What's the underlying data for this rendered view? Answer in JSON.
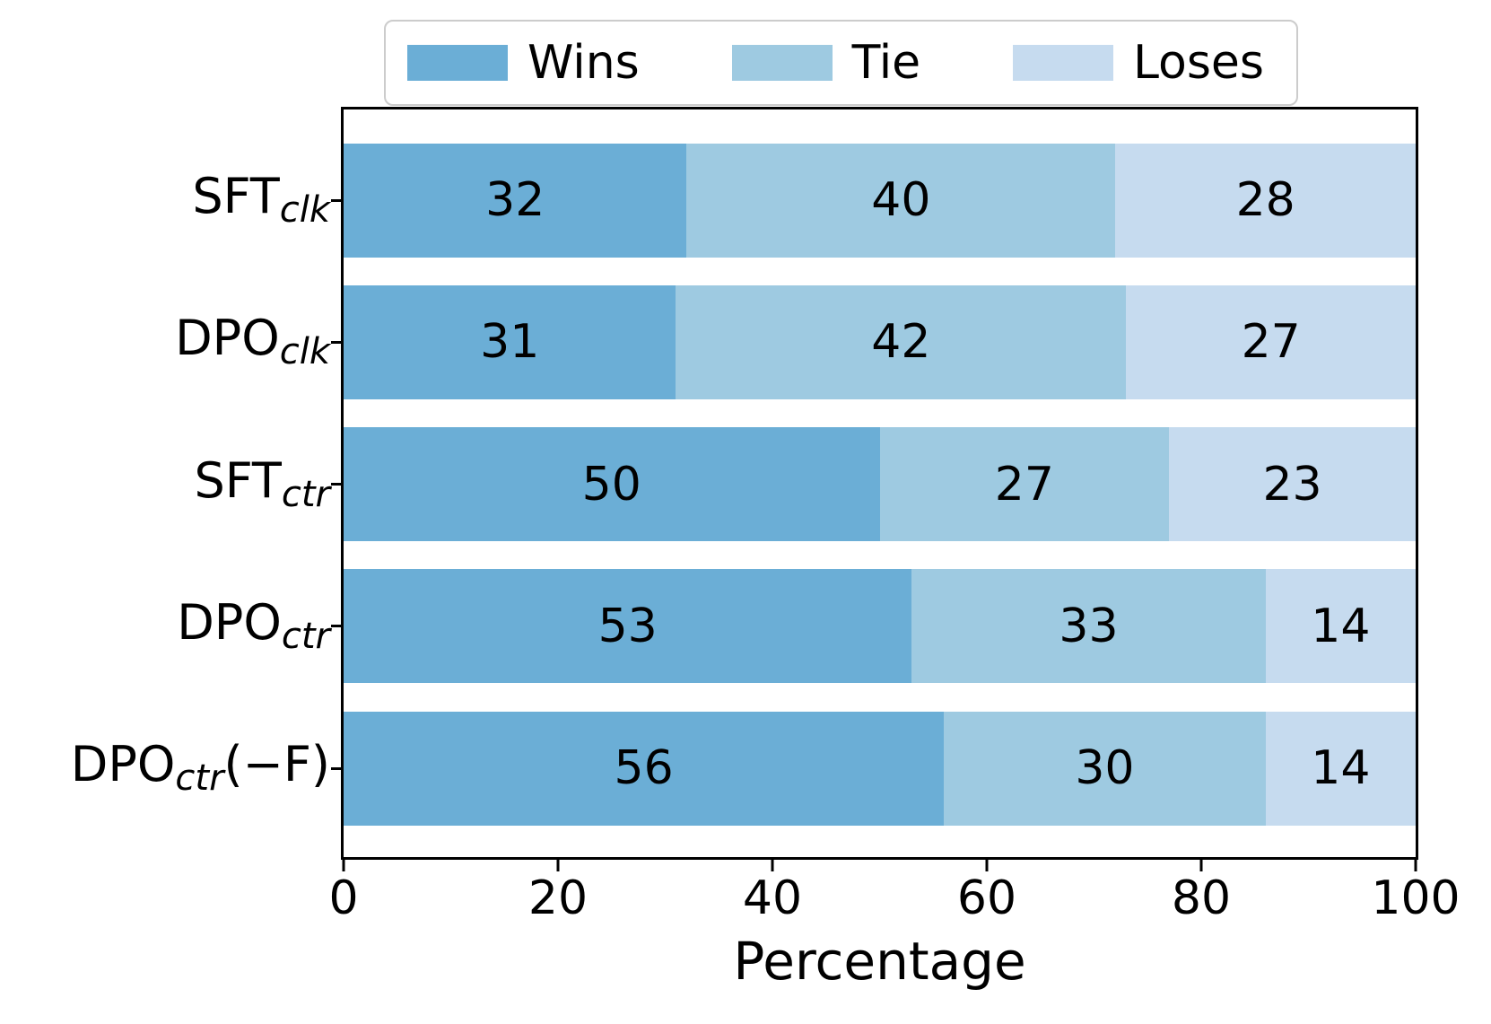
{
  "chart_data": {
    "type": "bar",
    "orientation": "horizontal",
    "stacked": true,
    "title": "",
    "xlabel": "Percentage",
    "ylabel": "",
    "xlim": [
      0,
      100
    ],
    "x_ticks": [
      "0",
      "20",
      "40",
      "60",
      "80",
      "100"
    ],
    "x_tick_values": [
      0,
      20,
      40,
      60,
      80,
      100
    ],
    "grid": false,
    "legend_position": "top-center",
    "categories": [
      "SFT_clk",
      "DPO_clk",
      "SFT_ctr",
      "DPO_ctr",
      "DPO_ctr(−F)"
    ],
    "category_label_parts": [
      [
        {
          "t": "SFT"
        },
        {
          "t": "clk",
          "sub": true
        }
      ],
      [
        {
          "t": "DPO"
        },
        {
          "t": "clk",
          "sub": true
        }
      ],
      [
        {
          "t": "SFT"
        },
        {
          "t": "ctr",
          "sub": true
        }
      ],
      [
        {
          "t": "DPO"
        },
        {
          "t": "ctr",
          "sub": true
        }
      ],
      [
        {
          "t": "DPO"
        },
        {
          "t": "ctr",
          "sub": true
        },
        {
          "t": "(−F)"
        }
      ]
    ],
    "series": [
      {
        "name": "Wins",
        "color": "#6baed6",
        "values": [
          32,
          31,
          50,
          53,
          56
        ]
      },
      {
        "name": "Tie",
        "color": "#9ecae1",
        "values": [
          40,
          42,
          27,
          33,
          30
        ]
      },
      {
        "name": "Loses",
        "color": "#c6dbef",
        "values": [
          28,
          27,
          23,
          14,
          14
        ]
      }
    ],
    "colors": {
      "wins": "#6baed6",
      "tie": "#9ecae1",
      "loses": "#c6dbef",
      "axis": "#000000",
      "background": "#ffffff",
      "legend_border": "#cccccc",
      "text": "#000000"
    }
  }
}
